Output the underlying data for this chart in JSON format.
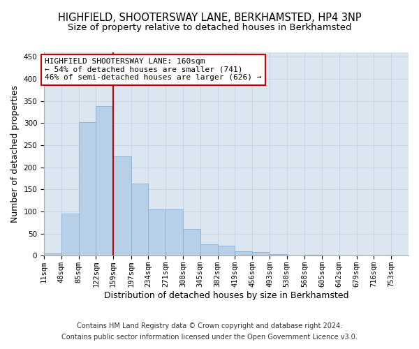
{
  "title": "HIGHFIELD, SHOOTERSWAY LANE, BERKHAMSTED, HP4 3NP",
  "subtitle": "Size of property relative to detached houses in Berkhamsted",
  "xlabel": "Distribution of detached houses by size in Berkhamsted",
  "ylabel": "Number of detached properties",
  "footnote1": "Contains HM Land Registry data © Crown copyright and database right 2024.",
  "footnote2": "Contains public sector information licensed under the Open Government Licence v3.0.",
  "annotation_line1": "HIGHFIELD SHOOTERSWAY LANE: 160sqm",
  "annotation_line2": "← 54% of detached houses are smaller (741)",
  "annotation_line3": "46% of semi-detached houses are larger (626) →",
  "bar_labels": [
    "11sqm",
    "48sqm",
    "85sqm",
    "122sqm",
    "159sqm",
    "197sqm",
    "234sqm",
    "271sqm",
    "308sqm",
    "345sqm",
    "382sqm",
    "419sqm",
    "456sqm",
    "493sqm",
    "530sqm",
    "568sqm",
    "605sqm",
    "642sqm",
    "679sqm",
    "716sqm",
    "753sqm"
  ],
  "bar_edges": [
    11,
    48,
    85,
    122,
    159,
    197,
    234,
    271,
    308,
    345,
    382,
    419,
    456,
    493,
    530,
    568,
    605,
    642,
    679,
    716,
    753
  ],
  "bar_heights": [
    5,
    95,
    302,
    338,
    225,
    163,
    105,
    105,
    60,
    25,
    22,
    10,
    8,
    3,
    0,
    2,
    0,
    1,
    0,
    0,
    1
  ],
  "bar_color": "#b8cfe8",
  "bar_edgecolor": "#8ab0d0",
  "vline_color": "#cc0000",
  "vline_x": 159,
  "ylim": [
    0,
    460
  ],
  "yticks": [
    0,
    50,
    100,
    150,
    200,
    250,
    300,
    350,
    400,
    450
  ],
  "grid_color": "#c8d4e8",
  "bg_color": "#dce6f0",
  "annotation_box_facecolor": "#ffffff",
  "annotation_box_edgecolor": "#cc0000",
  "title_fontsize": 10.5,
  "subtitle_fontsize": 9.5,
  "label_fontsize": 9,
  "tick_fontsize": 7.5,
  "annotation_fontsize": 8,
  "footnote_fontsize": 7
}
